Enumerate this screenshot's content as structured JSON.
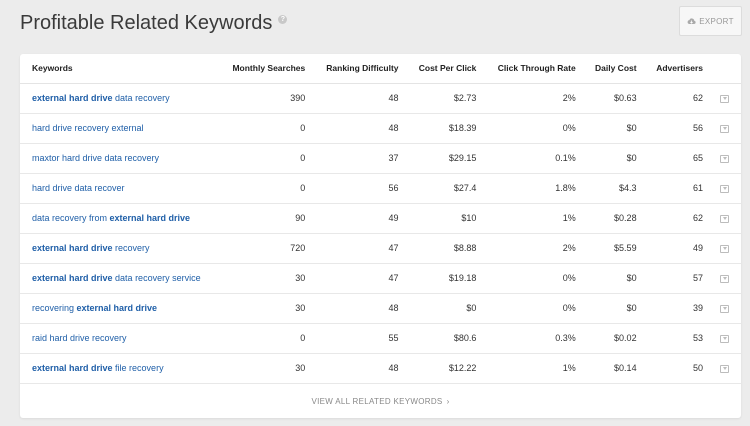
{
  "page": {
    "title": "Profitable Related Keywords",
    "help_icon": "?",
    "export_label": "EXPORT"
  },
  "table": {
    "headers": {
      "keywords": "Keywords",
      "monthly_searches": "Monthly Searches",
      "ranking_difficulty": "Ranking Difficulty",
      "cost_per_click": "Cost Per Click",
      "click_through_rate": "Click Through Rate",
      "daily_cost": "Daily Cost",
      "advertisers": "Advertisers"
    },
    "rows": [
      {
        "pre": "",
        "bold": "external hard drive",
        "post": " data recovery",
        "searches": "390",
        "difficulty": "48",
        "cpc": "$2.73",
        "ctr": "2%",
        "daily": "$0.63",
        "advertisers": "62"
      },
      {
        "pre": "hard drive recovery external",
        "bold": "",
        "post": "",
        "searches": "0",
        "difficulty": "48",
        "cpc": "$18.39",
        "ctr": "0%",
        "daily": "$0",
        "advertisers": "56"
      },
      {
        "pre": "maxtor hard drive data recovery",
        "bold": "",
        "post": "",
        "searches": "0",
        "difficulty": "37",
        "cpc": "$29.15",
        "ctr": "0.1%",
        "daily": "$0",
        "advertisers": "65"
      },
      {
        "pre": "hard drive data recover",
        "bold": "",
        "post": "",
        "searches": "0",
        "difficulty": "56",
        "cpc": "$27.4",
        "ctr": "1.8%",
        "daily": "$4.3",
        "advertisers": "61"
      },
      {
        "pre": "data recovery from ",
        "bold": "external hard drive",
        "post": "",
        "searches": "90",
        "difficulty": "49",
        "cpc": "$10",
        "ctr": "1%",
        "daily": "$0.28",
        "advertisers": "62"
      },
      {
        "pre": "",
        "bold": "external hard drive",
        "post": " recovery",
        "searches": "720",
        "difficulty": "47",
        "cpc": "$8.88",
        "ctr": "2%",
        "daily": "$5.59",
        "advertisers": "49"
      },
      {
        "pre": "",
        "bold": "external hard drive",
        "post": " data recovery service",
        "searches": "30",
        "difficulty": "47",
        "cpc": "$19.18",
        "ctr": "0%",
        "daily": "$0",
        "advertisers": "57"
      },
      {
        "pre": "recovering ",
        "bold": "external hard drive",
        "post": "",
        "searches": "30",
        "difficulty": "48",
        "cpc": "$0",
        "ctr": "0%",
        "daily": "$0",
        "advertisers": "39"
      },
      {
        "pre": "raid hard drive recovery",
        "bold": "",
        "post": "",
        "searches": "0",
        "difficulty": "55",
        "cpc": "$80.6",
        "ctr": "0.3%",
        "daily": "$0.02",
        "advertisers": "53"
      },
      {
        "pre": "",
        "bold": "external hard drive",
        "post": " file recovery",
        "searches": "30",
        "difficulty": "48",
        "cpc": "$12.22",
        "ctr": "1%",
        "daily": "$0.14",
        "advertisers": "50"
      }
    ]
  },
  "footer": {
    "view_all_label": "VIEW ALL RELATED KEYWORDS",
    "chevron": "›"
  },
  "icons": {
    "export": "cloud-download-icon",
    "help": "help-icon",
    "expand": "expand-icon",
    "chevron": "chevron-right-icon"
  },
  "colors": {
    "link": "#1f5fa8",
    "background": "#ececec",
    "card": "#ffffff"
  }
}
